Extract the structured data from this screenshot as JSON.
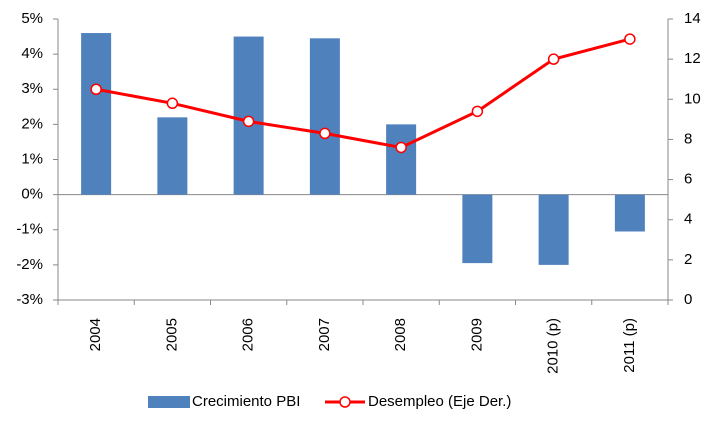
{
  "chart_data": {
    "type": "bar-line",
    "categories": [
      "2004",
      "2005",
      "2006",
      "2007",
      "2008",
      "2009",
      "2010 (p)",
      "2011 (p)"
    ],
    "series": [
      {
        "name": "Crecimiento PBI",
        "type": "bar",
        "color": "#4f81bd",
        "values": [
          4.6,
          2.2,
          4.5,
          4.45,
          2.0,
          -1.95,
          -2.0,
          -1.05
        ]
      },
      {
        "name": "Desempleo (Eje Der.)",
        "type": "line",
        "axis": "y2",
        "color": "#ff0000",
        "values": [
          10.5,
          9.8,
          8.9,
          8.3,
          7.6,
          9.4,
          12.0,
          13.0
        ]
      }
    ],
    "ylim": [
      -3,
      5
    ],
    "yticks": [
      {
        "value": -3,
        "label": "-3%"
      },
      {
        "value": -2,
        "label": "-2%"
      },
      {
        "value": -1,
        "label": "-1%"
      },
      {
        "value": 0,
        "label": "0%"
      },
      {
        "value": 1,
        "label": "1%"
      },
      {
        "value": 2,
        "label": "2%"
      },
      {
        "value": 3,
        "label": "3%"
      },
      {
        "value": 4,
        "label": "4%"
      },
      {
        "value": 5,
        "label": "5%"
      }
    ],
    "y2lim": [
      0,
      14
    ],
    "y2ticks": [
      0,
      2,
      4,
      6,
      8,
      10,
      12,
      14
    ],
    "grid": false,
    "legend": "bottom"
  }
}
